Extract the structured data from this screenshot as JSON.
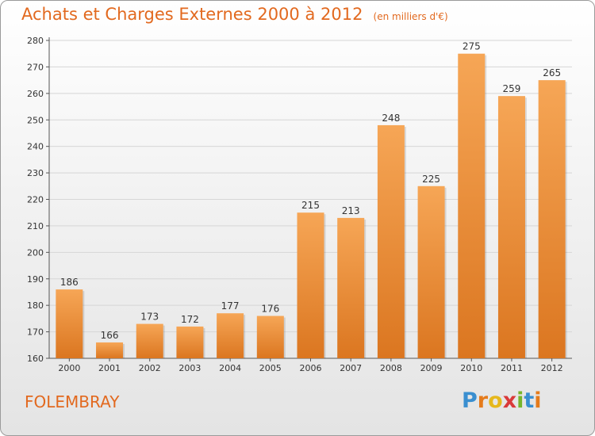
{
  "title": "Achats et Charges Externes 2000 à 2012",
  "unit": "(en milliers d'€)",
  "city": "FOLEMBRAY",
  "logo": {
    "text": "Proxiti",
    "letters": [
      "P",
      "r",
      "o",
      "x",
      "i",
      "t",
      "i"
    ],
    "colors": [
      "#3a8fd0",
      "#e57b1b",
      "#e6b81c",
      "#d93a3a",
      "#77b52b",
      "#3a8fd0",
      "#e57b1b"
    ]
  },
  "colors": {
    "accent": "#e2691f",
    "bar_top": "#f6a656",
    "bar_bottom": "#db7620",
    "grid": "#d6d6d6"
  },
  "chart_data": {
    "type": "bar",
    "categories": [
      "2000",
      "2001",
      "2002",
      "2003",
      "2004",
      "2005",
      "2006",
      "2007",
      "2008",
      "2009",
      "2010",
      "2011",
      "2012"
    ],
    "values": [
      186,
      166,
      173,
      172,
      177,
      176,
      215,
      213,
      248,
      225,
      275,
      259,
      265
    ],
    "yticks": [
      160,
      170,
      180,
      190,
      200,
      210,
      220,
      230,
      240,
      250,
      260,
      270,
      280
    ],
    "ylim": [
      160,
      280
    ],
    "grid": true,
    "data_labels": true
  }
}
